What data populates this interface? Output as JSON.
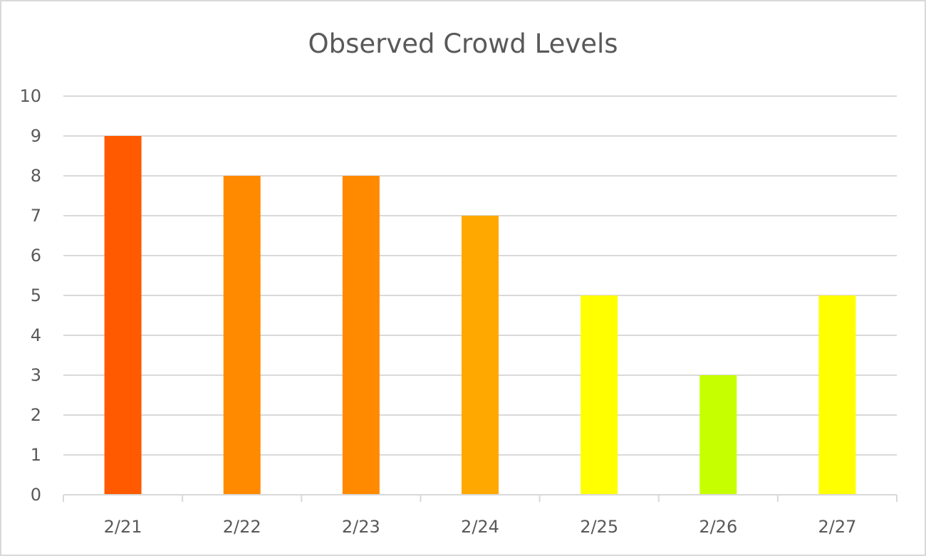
{
  "chart_data": {
    "type": "bar",
    "title": "Observed Crowd Levels",
    "xlabel": "",
    "ylabel": "",
    "categories": [
      "2/21",
      "2/22",
      "2/23",
      "2/24",
      "2/25",
      "2/26",
      "2/27"
    ],
    "values": [
      9,
      8,
      8,
      7,
      5,
      3,
      5
    ],
    "bar_colors": [
      "#ff5a00",
      "#ff8a00",
      "#ff8a00",
      "#ffa800",
      "#ffff00",
      "#c6ff00",
      "#ffff00"
    ],
    "ylim": [
      0,
      10
    ],
    "yticks": [
      0,
      1,
      2,
      3,
      4,
      5,
      6,
      7,
      8,
      9,
      10
    ],
    "grid": true,
    "legend": "none",
    "gridline_color": "#d9d9d9",
    "text_color": "#595959"
  }
}
